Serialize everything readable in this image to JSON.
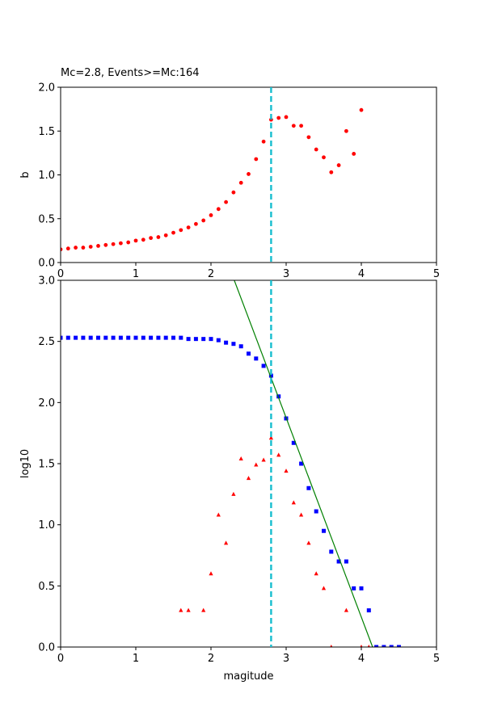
{
  "chart_data": [
    {
      "type": "scatter",
      "title": "Mc=2.8, Events>=Mc:164",
      "xlabel": "",
      "ylabel": "b",
      "xlim": [
        0,
        5
      ],
      "ylim": [
        0,
        2.0
      ],
      "x_ticks": [
        "0",
        "1",
        "2",
        "3",
        "4",
        "5"
      ],
      "y_ticks": [
        "0.0",
        "0.5",
        "1.0",
        "1.5",
        "2.0"
      ],
      "grid": false,
      "mc_line": {
        "x": 2.8,
        "color": "#17becf",
        "style": "dashed"
      },
      "series": [
        {
          "marker": "circle",
          "color": "#ff0000",
          "x": [
            0.0,
            0.1,
            0.2,
            0.3,
            0.4,
            0.5,
            0.6,
            0.7,
            0.8,
            0.9,
            1.0,
            1.1,
            1.2,
            1.3,
            1.4,
            1.5,
            1.6,
            1.7,
            1.8,
            1.9,
            2.0,
            2.1,
            2.2,
            2.3,
            2.4,
            2.5,
            2.6,
            2.7,
            2.8,
            2.9,
            3.0,
            3.1,
            3.2,
            3.3,
            3.4,
            3.5,
            3.6,
            3.7,
            3.8,
            3.9,
            4.0
          ],
          "y": [
            0.15,
            0.16,
            0.17,
            0.17,
            0.18,
            0.19,
            0.2,
            0.21,
            0.22,
            0.23,
            0.25,
            0.26,
            0.28,
            0.29,
            0.31,
            0.34,
            0.37,
            0.4,
            0.44,
            0.48,
            0.54,
            0.61,
            0.69,
            0.8,
            0.91,
            1.01,
            1.18,
            1.38,
            1.63,
            1.65,
            1.66,
            1.56,
            1.56,
            1.43,
            1.29,
            1.2,
            1.03,
            1.11,
            1.5,
            1.24,
            1.74
          ]
        }
      ]
    },
    {
      "type": "scatter",
      "xlabel": "magitude",
      "ylabel": "log10",
      "xlim": [
        0,
        5
      ],
      "ylim": [
        0,
        3.0
      ],
      "x_ticks": [
        "0",
        "1",
        "2",
        "3",
        "4",
        "5"
      ],
      "y_ticks": [
        "0.0",
        "0.5",
        "1.0",
        "1.5",
        "2.0",
        "2.5",
        "3.0"
      ],
      "grid": false,
      "mc_line": {
        "x": 2.8,
        "color": "#17becf",
        "style": "dashed"
      },
      "series": [
        {
          "marker": "square",
          "color": "#0000ff",
          "x": [
            0.0,
            0.1,
            0.2,
            0.3,
            0.4,
            0.5,
            0.6,
            0.7,
            0.8,
            0.9,
            1.0,
            1.1,
            1.2,
            1.3,
            1.4,
            1.5,
            1.6,
            1.7,
            1.8,
            1.9,
            2.0,
            2.1,
            2.2,
            2.3,
            2.4,
            2.5,
            2.6,
            2.7,
            2.8,
            2.9,
            3.0,
            3.1,
            3.2,
            3.3,
            3.4,
            3.5,
            3.6,
            3.7,
            3.8,
            3.9,
            4.0,
            4.1,
            4.2,
            4.3,
            4.4,
            4.5
          ],
          "y": [
            2.53,
            2.53,
            2.53,
            2.53,
            2.53,
            2.53,
            2.53,
            2.53,
            2.53,
            2.53,
            2.53,
            2.53,
            2.53,
            2.53,
            2.53,
            2.53,
            2.53,
            2.52,
            2.52,
            2.52,
            2.52,
            2.51,
            2.49,
            2.48,
            2.46,
            2.4,
            2.36,
            2.3,
            2.22,
            2.05,
            1.87,
            1.67,
            1.5,
            1.3,
            1.11,
            0.95,
            0.78,
            0.7,
            0.7,
            0.48,
            0.48,
            0.3,
            0.0,
            0.0,
            0.0,
            0.0
          ]
        },
        {
          "marker": "triangle",
          "color": "#ff0000",
          "x": [
            1.6,
            1.7,
            1.9,
            2.0,
            2.1,
            2.2,
            2.3,
            2.4,
            2.5,
            2.6,
            2.7,
            2.8,
            2.9,
            3.0,
            3.1,
            3.2,
            3.3,
            3.4,
            3.5,
            3.6,
            3.8,
            4.0,
            4.1
          ],
          "y": [
            0.3,
            0.3,
            0.3,
            0.6,
            1.08,
            0.85,
            1.25,
            1.54,
            1.38,
            1.49,
            1.53,
            1.71,
            1.57,
            1.44,
            1.18,
            1.08,
            0.85,
            0.6,
            0.48,
            0.0,
            0.3,
            0.0,
            0.0
          ]
        },
        {
          "marker": "line",
          "color": "#008000",
          "x": [
            2.31,
            4.15
          ],
          "y": [
            3.0,
            0.0
          ]
        }
      ]
    }
  ]
}
